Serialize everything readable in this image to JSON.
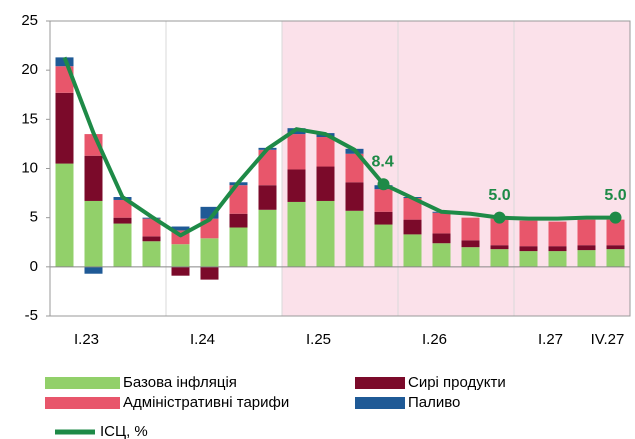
{
  "chart_data": {
    "type": "bar",
    "stacked": true,
    "categories": [
      "I.23",
      null,
      null,
      null,
      "I.24",
      null,
      null,
      null,
      "I.25",
      null,
      null,
      null,
      "I.26",
      null,
      null,
      null,
      "I.27",
      null,
      null,
      "IV.27"
    ],
    "series": [
      {
        "name": "Базова інфляція",
        "color": "#92d06a",
        "values": [
          10.5,
          6.7,
          4.4,
          2.6,
          2.3,
          2.9,
          4.0,
          5.8,
          6.6,
          6.7,
          5.7,
          4.3,
          3.3,
          2.4,
          2.0,
          1.8,
          1.6,
          1.6,
          1.7,
          1.8
        ]
      },
      {
        "name": "Сирі продукти",
        "color": "#7b0a2a",
        "values": [
          7.2,
          4.6,
          0.6,
          0.5,
          -0.9,
          -1.3,
          1.4,
          2.5,
          3.3,
          3.5,
          2.9,
          1.3,
          1.5,
          1.0,
          0.7,
          0.4,
          0.5,
          0.5,
          0.5,
          0.4
        ]
      },
      {
        "name": "Адміністративні тарифи",
        "color": "#e8566b",
        "values": [
          2.7,
          2.2,
          1.8,
          1.8,
          1.4,
          2.0,
          2.9,
          3.6,
          3.6,
          3.0,
          2.9,
          2.3,
          2.2,
          2.1,
          2.3,
          2.7,
          2.6,
          2.5,
          2.6,
          2.6
        ]
      },
      {
        "name": "Паливо",
        "color": "#1f5a96",
        "values": [
          0.9,
          -0.7,
          0.3,
          0.1,
          0.4,
          1.2,
          0.3,
          0.2,
          0.6,
          0.4,
          0.5,
          0.4,
          0.1,
          0.1,
          0,
          0,
          0,
          0,
          0,
          0
        ]
      },
      {
        "name": "ІСЦ, %",
        "type": "line",
        "color": "#1e8a47",
        "values": [
          21.3,
          13.6,
          7.1,
          5.1,
          3.2,
          4.8,
          8.6,
          12.0,
          14.0,
          13.5,
          11.9,
          8.4,
          7.0,
          5.6,
          5.4,
          5.0,
          4.9,
          4.9,
          5.0,
          5.0
        ],
        "value_labels": [
          null,
          null,
          null,
          null,
          null,
          null,
          null,
          null,
          null,
          null,
          null,
          "8.4",
          null,
          null,
          null,
          "5.0",
          null,
          null,
          null,
          "5.0"
        ]
      }
    ],
    "ylim": [
      -5,
      25
    ],
    "yticks": [
      -5,
      0,
      5,
      10,
      15,
      20,
      25
    ],
    "shaded_from": "I.25",
    "legend": "bottom"
  }
}
